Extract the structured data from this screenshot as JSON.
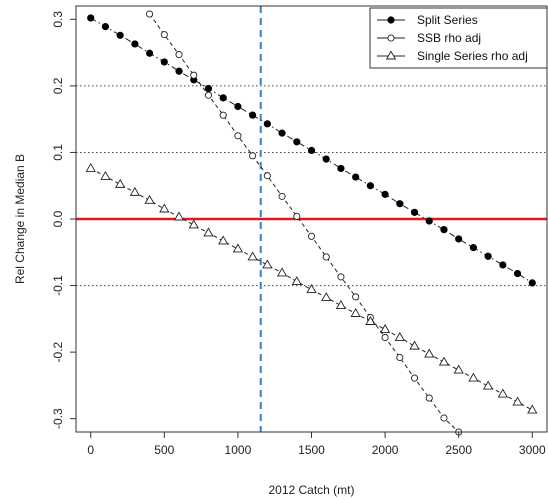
{
  "chart_data": {
    "type": "scatter",
    "xlabel": "2012 Catch (mt)",
    "ylabel": "Rel Change in Median B",
    "xlim": [
      -100,
      3100
    ],
    "ylim": [
      -0.32,
      0.32
    ],
    "xticks": [
      0,
      500,
      1000,
      1500,
      2000,
      2500,
      3000
    ],
    "yticks": [
      0.3,
      0.2,
      0.1,
      0.0,
      -0.1,
      -0.2,
      -0.3
    ],
    "ytick_labels": [
      "0.3",
      "0.2",
      "0.1",
      "0.0",
      "-0.1",
      "-0.2",
      "-0.3"
    ],
    "grid": "dotted horizontal lines at -0.1, 0.1, 0.2",
    "reference_lines": [
      {
        "orientation": "horizontal",
        "value": 0.0,
        "color": "#e8141c",
        "style": "solid"
      },
      {
        "orientation": "vertical",
        "value": 1155,
        "color": "#3a7ec4",
        "style": "dashed"
      }
    ],
    "legend_position": "top-right",
    "series": [
      {
        "name": "Split Series",
        "marker": "filled-circle",
        "line": "dash-dot",
        "x": [
          0,
          100,
          200,
          300,
          400,
          500,
          600,
          700,
          800,
          900,
          1000,
          1100,
          1200,
          1300,
          1400,
          1500,
          1600,
          1700,
          1800,
          1900,
          2000,
          2100,
          2200,
          2300,
          2400,
          2500,
          2600,
          2700,
          2800,
          2900,
          3000
        ],
        "values": [
          0.302,
          0.289,
          0.276,
          0.263,
          0.249,
          0.236,
          0.222,
          0.209,
          0.196,
          0.182,
          0.169,
          0.156,
          0.143,
          0.129,
          0.116,
          0.103,
          0.09,
          0.076,
          0.063,
          0.05,
          0.037,
          0.023,
          0.01,
          -0.003,
          -0.016,
          -0.03,
          -0.043,
          -0.056,
          -0.069,
          -0.082,
          -0.096
        ]
      },
      {
        "name": "SSB rho adj",
        "marker": "open-circle",
        "line": "dashed",
        "x": [
          400,
          500,
          600,
          700,
          800,
          900,
          1000,
          1100,
          1200,
          1300,
          1400,
          1500,
          1600,
          1700,
          1800,
          1900,
          2000,
          2100,
          2200,
          2300,
          2400,
          2500
        ],
        "values": [
          0.308,
          0.277,
          0.247,
          0.216,
          0.186,
          0.156,
          0.125,
          0.095,
          0.065,
          0.034,
          0.004,
          -0.026,
          -0.057,
          -0.087,
          -0.117,
          -0.148,
          -0.178,
          -0.208,
          -0.239,
          -0.269,
          -0.299,
          -0.32
        ]
      },
      {
        "name": "Single Series rho adj",
        "marker": "open-triangle",
        "line": "dashed",
        "x": [
          0,
          100,
          200,
          300,
          400,
          500,
          600,
          700,
          800,
          900,
          1000,
          1100,
          1200,
          1300,
          1400,
          1500,
          1600,
          1700,
          1800,
          1900,
          2000,
          2100,
          2200,
          2300,
          2400,
          2500,
          2600,
          2700,
          2800,
          2900,
          3000
        ],
        "values": [
          0.076,
          0.064,
          0.052,
          0.04,
          0.028,
          0.015,
          0.003,
          -0.009,
          -0.021,
          -0.033,
          -0.045,
          -0.057,
          -0.069,
          -0.081,
          -0.094,
          -0.106,
          -0.118,
          -0.13,
          -0.142,
          -0.154,
          -0.166,
          -0.178,
          -0.191,
          -0.203,
          -0.215,
          -0.227,
          -0.239,
          -0.251,
          -0.263,
          -0.275,
          -0.287
        ]
      }
    ]
  }
}
